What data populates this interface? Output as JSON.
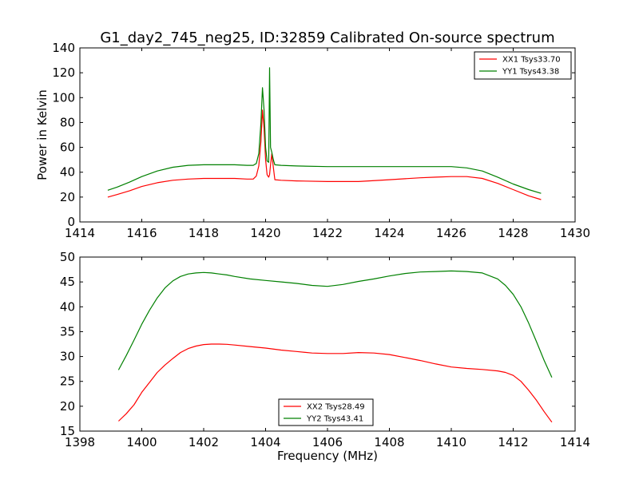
{
  "figure_title": "G1_day2_745_neg25, ID:32859 Calibrated On-source spectrum",
  "chart_data": [
    {
      "type": "line",
      "title": "G1_day2_745_neg25, ID:32859 Calibrated On-source spectrum",
      "xlabel": "",
      "ylabel": "Power in Kelvin",
      "xlim": [
        1414,
        1430
      ],
      "ylim": [
        0,
        140
      ],
      "xticks": [
        1414,
        1416,
        1418,
        1420,
        1422,
        1424,
        1426,
        1428,
        1430
      ],
      "yticks": [
        0,
        20,
        40,
        60,
        80,
        100,
        120,
        140
      ],
      "grid": false,
      "legend_position": "top-right",
      "series": [
        {
          "name": "XX1 Tsys33.70",
          "color": "#ff0000",
          "x": [
            1414.9,
            1415.2,
            1415.6,
            1416.0,
            1416.5,
            1417.0,
            1417.5,
            1418.0,
            1418.5,
            1419.0,
            1419.4,
            1419.6,
            1419.7,
            1419.78,
            1419.85,
            1419.9,
            1419.95,
            1420.0,
            1420.05,
            1420.1,
            1420.13,
            1420.16,
            1420.2,
            1420.25,
            1420.3,
            1420.5,
            1421.0,
            1422.0,
            1423.0,
            1424.0,
            1425.0,
            1425.5,
            1426.0,
            1426.5,
            1427.0,
            1427.5,
            1428.0,
            1428.5,
            1428.9
          ],
          "values": [
            20,
            22,
            25,
            28.5,
            31.5,
            33.5,
            34.5,
            35,
            35,
            35,
            34.5,
            34.5,
            37,
            45,
            65,
            90,
            75,
            50,
            38,
            36,
            38,
            46,
            55,
            44,
            34,
            33.5,
            33,
            32.5,
            32.5,
            34,
            35.5,
            36,
            36.5,
            36.5,
            35,
            31,
            26,
            21,
            18
          ]
        },
        {
          "name": "YY1 Tsys43.38",
          "color": "#008000",
          "x": [
            1414.9,
            1415.2,
            1415.6,
            1416.0,
            1416.5,
            1417.0,
            1417.5,
            1418.0,
            1418.5,
            1419.0,
            1419.4,
            1419.6,
            1419.7,
            1419.78,
            1419.85,
            1419.9,
            1419.95,
            1420.0,
            1420.05,
            1420.1,
            1420.13,
            1420.16,
            1420.2,
            1420.25,
            1420.3,
            1420.5,
            1421.0,
            1422.0,
            1423.0,
            1424.0,
            1425.0,
            1425.5,
            1426.0,
            1426.5,
            1427.0,
            1427.5,
            1428.0,
            1428.5,
            1428.9
          ],
          "values": [
            25.5,
            28,
            32,
            36.5,
            41,
            44,
            45.5,
            46,
            46,
            46,
            45.5,
            45.5,
            47,
            55,
            80,
            108,
            90,
            60,
            49,
            48,
            124,
            60,
            56,
            50,
            46,
            45.5,
            45,
            44.5,
            44.5,
            44.5,
            44.5,
            44.5,
            44.5,
            43.5,
            41,
            36,
            30.5,
            26,
            23
          ]
        }
      ]
    },
    {
      "type": "line",
      "title": "",
      "xlabel": "Frequency (MHz)",
      "ylabel": "",
      "xlim": [
        1398,
        1414
      ],
      "ylim": [
        15,
        50
      ],
      "xticks": [
        1398,
        1400,
        1402,
        1404,
        1406,
        1408,
        1410,
        1412,
        1414
      ],
      "yticks": [
        15,
        20,
        25,
        30,
        35,
        40,
        45,
        50
      ],
      "grid": false,
      "legend_position": "bottom-center",
      "series": [
        {
          "name": "XX2 Tsys28.49",
          "color": "#ff0000",
          "x": [
            1399.25,
            1399.5,
            1399.75,
            1400.0,
            1400.25,
            1400.5,
            1400.75,
            1401.0,
            1401.25,
            1401.5,
            1401.75,
            1402.0,
            1402.25,
            1402.5,
            1402.75,
            1403.0,
            1403.5,
            1404.0,
            1404.5,
            1405.0,
            1405.5,
            1406.0,
            1406.5,
            1407.0,
            1407.5,
            1408.0,
            1408.5,
            1409.0,
            1409.5,
            1410.0,
            1410.5,
            1411.0,
            1411.5,
            1411.75,
            1412.0,
            1412.25,
            1412.5,
            1412.75,
            1413.0,
            1413.25
          ],
          "values": [
            17,
            18.5,
            20.3,
            22.8,
            24.8,
            26.8,
            28.3,
            29.6,
            30.8,
            31.6,
            32.1,
            32.4,
            32.5,
            32.5,
            32.45,
            32.3,
            32.0,
            31.7,
            31.3,
            31.0,
            30.7,
            30.6,
            30.6,
            30.8,
            30.7,
            30.4,
            29.8,
            29.2,
            28.5,
            27.9,
            27.6,
            27.4,
            27.1,
            26.8,
            26.2,
            25.0,
            23.2,
            21.2,
            18.9,
            16.8
          ]
        },
        {
          "name": "YY2 Tsys43.41",
          "color": "#008000",
          "x": [
            1399.25,
            1399.5,
            1399.75,
            1400.0,
            1400.25,
            1400.5,
            1400.75,
            1401.0,
            1401.25,
            1401.5,
            1401.75,
            1402.0,
            1402.25,
            1402.5,
            1402.75,
            1403.0,
            1403.5,
            1404.0,
            1404.5,
            1405.0,
            1405.5,
            1406.0,
            1406.5,
            1407.0,
            1407.5,
            1408.0,
            1408.5,
            1409.0,
            1409.5,
            1410.0,
            1410.5,
            1411.0,
            1411.5,
            1411.75,
            1412.0,
            1412.25,
            1412.5,
            1412.75,
            1413.0,
            1413.25
          ],
          "values": [
            27.3,
            30.2,
            33.3,
            36.5,
            39.3,
            41.8,
            43.8,
            45.2,
            46.1,
            46.6,
            46.8,
            46.9,
            46.8,
            46.6,
            46.4,
            46.1,
            45.6,
            45.3,
            45.0,
            44.7,
            44.3,
            44.1,
            44.5,
            45.1,
            45.6,
            46.2,
            46.7,
            47.0,
            47.1,
            47.2,
            47.1,
            46.8,
            45.6,
            44.3,
            42.5,
            40.0,
            36.7,
            33.0,
            29.2,
            25.8
          ]
        }
      ]
    }
  ]
}
